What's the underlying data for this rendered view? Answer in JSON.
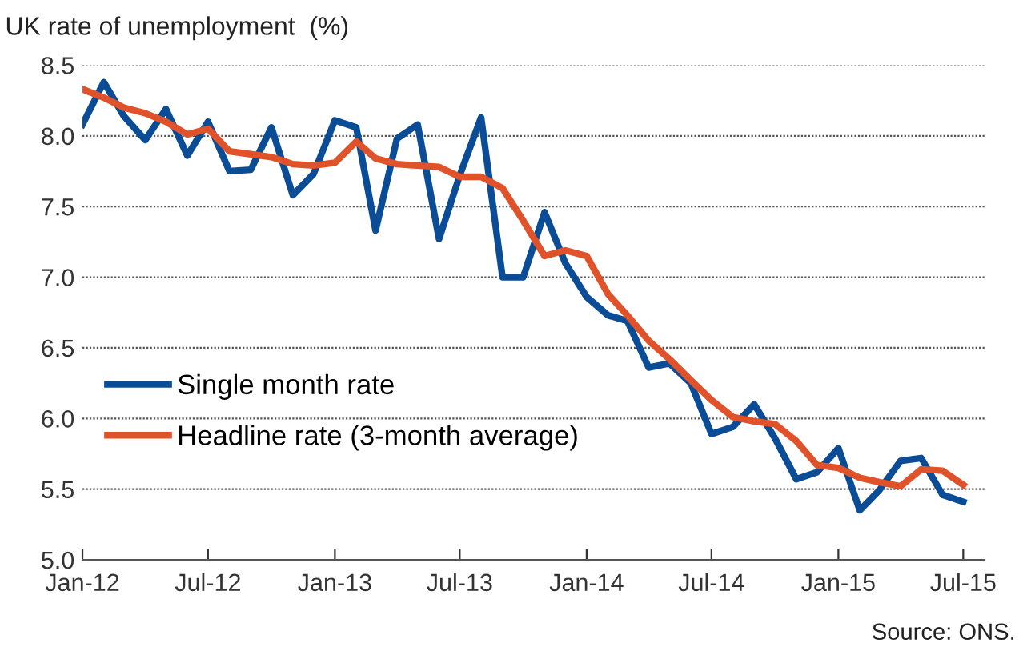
{
  "chart_data": {
    "type": "line",
    "ylabel": "UK rate of unemployment  (%)",
    "x": [
      "2012-01",
      "2012-02",
      "2012-03",
      "2012-04",
      "2012-05",
      "2012-06",
      "2012-07",
      "2012-08",
      "2012-09",
      "2012-10",
      "2012-11",
      "2012-12",
      "2013-01",
      "2013-02",
      "2013-03",
      "2013-04",
      "2013-05",
      "2013-06",
      "2013-07",
      "2013-08",
      "2013-09",
      "2013-10",
      "2013-11",
      "2013-12",
      "2014-01",
      "2014-02",
      "2014-03",
      "2014-04",
      "2014-05",
      "2014-06",
      "2014-07",
      "2014-08",
      "2014-09",
      "2014-10",
      "2014-11",
      "2014-12",
      "2015-01",
      "2015-02",
      "2015-03",
      "2015-04",
      "2015-05",
      "2015-06",
      "2015-07"
    ],
    "series": [
      {
        "name": "Single month rate",
        "color": "#0b4c97",
        "values": [
          8.08,
          8.38,
          8.14,
          7.97,
          8.19,
          7.86,
          8.1,
          7.75,
          7.76,
          8.06,
          7.58,
          7.73,
          8.11,
          8.06,
          7.33,
          7.98,
          8.08,
          7.27,
          7.72,
          8.13,
          7.0,
          7.0,
          7.46,
          7.1,
          6.86,
          6.73,
          6.69,
          6.36,
          6.39,
          6.25,
          5.89,
          5.94,
          6.1,
          5.86,
          5.57,
          5.62,
          5.79,
          5.35,
          5.49,
          5.7,
          5.72,
          5.46,
          5.41
        ]
      },
      {
        "name": "Headline rate (3-month average)",
        "color": "#e0522a",
        "values": [
          8.33,
          8.27,
          8.2,
          8.16,
          8.1,
          8.01,
          8.05,
          7.89,
          7.87,
          7.85,
          7.8,
          7.79,
          7.81,
          7.96,
          7.84,
          7.8,
          7.79,
          7.78,
          7.71,
          7.71,
          7.63,
          7.4,
          7.15,
          7.19,
          7.15,
          6.88,
          6.73,
          6.55,
          6.42,
          6.27,
          6.13,
          6.01,
          5.98,
          5.96,
          5.84,
          5.67,
          5.65,
          5.58,
          5.55,
          5.52,
          5.64,
          5.63,
          5.53
        ]
      }
    ],
    "ylim": [
      5.0,
      8.5
    ],
    "yticks": [
      {
        "value": 5.0,
        "label": "5.0"
      },
      {
        "value": 5.5,
        "label": "5.5"
      },
      {
        "value": 6.0,
        "label": "6.0"
      },
      {
        "value": 6.5,
        "label": "6.5"
      },
      {
        "value": 7.0,
        "label": "7.0"
      },
      {
        "value": 7.5,
        "label": "7.5"
      },
      {
        "value": 8.0,
        "label": "8.0"
      },
      {
        "value": 8.5,
        "label": "8.5"
      }
    ],
    "xlim": [
      "2012-01",
      "2015-08"
    ],
    "xticks": [
      {
        "value": "2012-01",
        "label": "Jan-12"
      },
      {
        "value": "2012-07",
        "label": "Jul-12"
      },
      {
        "value": "2013-01",
        "label": "Jan-13"
      },
      {
        "value": "2013-07",
        "label": "Jul-13"
      },
      {
        "value": "2014-01",
        "label": "Jan-14"
      },
      {
        "value": "2014-07",
        "label": "Jul-14"
      },
      {
        "value": "2015-01",
        "label": "Jan-15"
      },
      {
        "value": "2015-07",
        "label": "Jul-15"
      }
    ],
    "grid": "y",
    "legend": "lower left",
    "marker": "none",
    "line_style": "solid",
    "annotations": [
      "Source: ONS."
    ]
  }
}
